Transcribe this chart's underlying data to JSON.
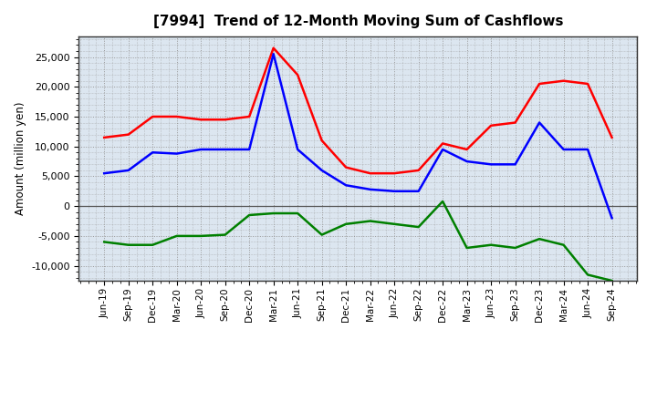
{
  "title": "[7994]  Trend of 12-Month Moving Sum of Cashflows",
  "ylabel": "Amount (million yen)",
  "x_labels": [
    "Jun-19",
    "Sep-19",
    "Dec-19",
    "Mar-20",
    "Jun-20",
    "Sep-20",
    "Dec-20",
    "Mar-21",
    "Jun-21",
    "Sep-21",
    "Dec-21",
    "Mar-22",
    "Jun-22",
    "Sep-22",
    "Dec-22",
    "Mar-23",
    "Jun-23",
    "Sep-23",
    "Dec-23",
    "Mar-24",
    "Jun-24",
    "Sep-24"
  ],
  "operating": [
    11500,
    12000,
    15000,
    15000,
    14500,
    14500,
    15000,
    26500,
    22000,
    11000,
    6500,
    5500,
    5500,
    6000,
    10500,
    9500,
    13500,
    14000,
    20500,
    21000,
    20500,
    11500
  ],
  "investing": [
    -6000,
    -6500,
    -6500,
    -5000,
    -5000,
    -4800,
    -1500,
    -1200,
    -1200,
    -4800,
    -3000,
    -2500,
    -3000,
    -3500,
    800,
    -7000,
    -6500,
    -7000,
    -5500,
    -6500,
    -11500,
    -12500
  ],
  "free": [
    5500,
    6000,
    9000,
    8800,
    9500,
    9500,
    9500,
    25500,
    9500,
    6000,
    3500,
    2800,
    2500,
    2500,
    9500,
    7500,
    7000,
    7000,
    14000,
    9500,
    9500,
    -2000
  ],
  "op_color": "#ff0000",
  "inv_color": "#008000",
  "free_color": "#0000ff",
  "ylim_min": -12500,
  "ylim_max": 28500,
  "plot_bg": "#dce6f0",
  "fig_bg": "#ffffff",
  "grid_color": "#999999",
  "border_color": "#333333"
}
